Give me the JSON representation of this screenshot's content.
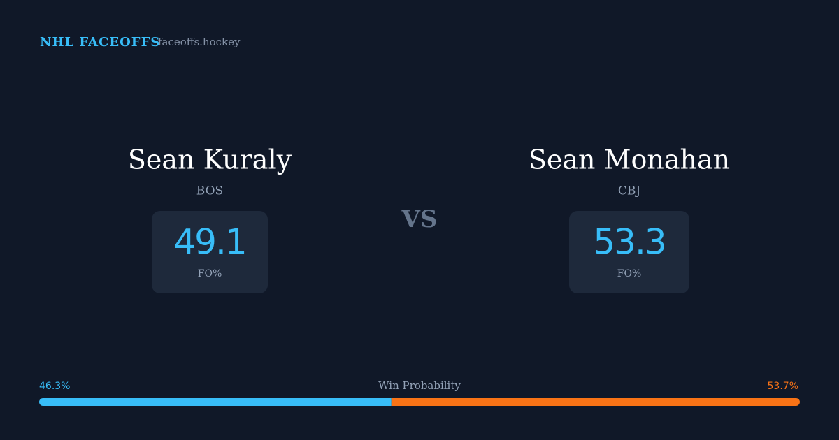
{
  "header": {
    "title": "NHL FACEOFFS",
    "site": "faceoffs.hockey"
  },
  "players": [
    {
      "name": "Sean Kuraly",
      "team": "BOS",
      "fo_pct": 49.1,
      "fo_label": "FO%"
    },
    {
      "name": "Sean Monahan",
      "team": "CBJ",
      "fo_pct": 53.3,
      "fo_label": "FO%"
    }
  ],
  "vs": "VS",
  "win_probability": {
    "label": "Win Probability",
    "values": [
      46.3,
      53.7
    ],
    "value_labels": [
      "46.3%",
      "53.7%"
    ],
    "colors": [
      "#38bdf8",
      "#f97316"
    ]
  }
}
